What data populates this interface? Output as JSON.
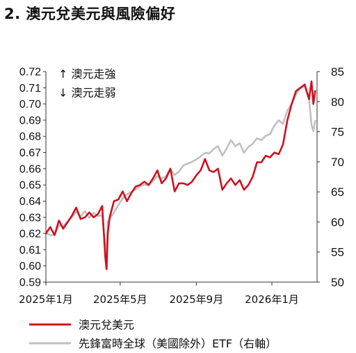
{
  "title": "2. 澳元兌美元與風險偏好",
  "annotations": {
    "up": "↑ 澳元走強",
    "down": "↓ 澳元走弱"
  },
  "colors": {
    "audusd": "#d0101e",
    "etf": "#c0c0c0",
    "axis": "#333333"
  },
  "chart_data": {
    "type": "line",
    "title": "2. 澳元兌美元與風險偏好",
    "x_tick_labels": [
      "2025年1月",
      "2025年5月",
      "2025年9月",
      "2026年1月"
    ],
    "x_tick_dates": [
      "2025-01-01",
      "2025-05-01",
      "2025-09-01",
      "2026-01-01"
    ],
    "x_range": [
      "2025-01-01",
      "2026-03-15"
    ],
    "y_left": {
      "min": 0.59,
      "max": 0.72,
      "step": 0.01,
      "ticks": [
        "0.59",
        "0.60",
        "0.61",
        "0.62",
        "0.63",
        "0.64",
        "0.65",
        "0.66",
        "0.67",
        "0.68",
        "0.69",
        "0.70",
        "0.71",
        "0.72"
      ]
    },
    "y_right": {
      "min": 50,
      "max": 85,
      "step": 5,
      "ticks": [
        "50",
        "55",
        "60",
        "65",
        "70",
        "75",
        "80",
        "85"
      ]
    },
    "legend_position": "bottom",
    "grid": false,
    "series": [
      {
        "name": "澳元兌美元",
        "axis": "left",
        "color": "#d0101e",
        "points": [
          [
            "2025-01-01",
            0.62
          ],
          [
            "2025-01-08",
            0.624
          ],
          [
            "2025-01-15",
            0.619
          ],
          [
            "2025-01-22",
            0.628
          ],
          [
            "2025-01-29",
            0.623
          ],
          [
            "2025-02-05",
            0.627
          ],
          [
            "2025-02-12",
            0.631
          ],
          [
            "2025-02-19",
            0.636
          ],
          [
            "2025-02-26",
            0.629
          ],
          [
            "2025-03-05",
            0.63
          ],
          [
            "2025-03-12",
            0.633
          ],
          [
            "2025-03-19",
            0.63
          ],
          [
            "2025-03-26",
            0.632
          ],
          [
            "2025-04-02",
            0.637
          ],
          [
            "2025-04-07",
            0.605
          ],
          [
            "2025-04-09",
            0.598
          ],
          [
            "2025-04-11",
            0.62
          ],
          [
            "2025-04-14",
            0.63
          ],
          [
            "2025-04-21",
            0.64
          ],
          [
            "2025-04-28",
            0.641
          ],
          [
            "2025-05-05",
            0.646
          ],
          [
            "2025-05-12",
            0.64
          ],
          [
            "2025-05-19",
            0.645
          ],
          [
            "2025-05-26",
            0.649
          ],
          [
            "2025-06-02",
            0.65
          ],
          [
            "2025-06-09",
            0.652
          ],
          [
            "2025-06-16",
            0.65
          ],
          [
            "2025-06-23",
            0.654
          ],
          [
            "2025-06-30",
            0.659
          ],
          [
            "2025-07-07",
            0.651
          ],
          [
            "2025-07-14",
            0.654
          ],
          [
            "2025-07-21",
            0.66
          ],
          [
            "2025-07-28",
            0.646
          ],
          [
            "2025-08-04",
            0.651
          ],
          [
            "2025-08-11",
            0.651
          ],
          [
            "2025-08-18",
            0.65
          ],
          [
            "2025-08-25",
            0.652
          ],
          [
            "2025-09-01",
            0.656
          ],
          [
            "2025-09-08",
            0.659
          ],
          [
            "2025-09-15",
            0.666
          ],
          [
            "2025-09-22",
            0.659
          ],
          [
            "2025-09-29",
            0.658
          ],
          [
            "2025-10-06",
            0.66
          ],
          [
            "2025-10-13",
            0.647
          ],
          [
            "2025-10-20",
            0.651
          ],
          [
            "2025-10-27",
            0.654
          ],
          [
            "2025-11-03",
            0.65
          ],
          [
            "2025-11-10",
            0.653
          ],
          [
            "2025-11-17",
            0.647
          ],
          [
            "2025-11-24",
            0.65
          ],
          [
            "2025-12-01",
            0.655
          ],
          [
            "2025-12-08",
            0.664
          ],
          [
            "2025-12-15",
            0.664
          ],
          [
            "2025-12-22",
            0.668
          ],
          [
            "2025-12-29",
            0.667
          ],
          [
            "2026-01-05",
            0.67
          ],
          [
            "2026-01-12",
            0.669
          ],
          [
            "2026-01-19",
            0.675
          ],
          [
            "2026-01-26",
            0.69
          ],
          [
            "2026-02-02",
            0.7
          ],
          [
            "2026-02-09",
            0.708
          ],
          [
            "2026-02-16",
            0.71
          ],
          [
            "2026-02-23",
            0.712
          ],
          [
            "2026-03-02",
            0.703
          ],
          [
            "2026-03-06",
            0.714
          ],
          [
            "2026-03-09",
            0.7
          ],
          [
            "2026-03-12",
            0.708
          ]
        ]
      },
      {
        "name": "先鋒富時全球（美國除外）ETF（右軸）",
        "axis": "right",
        "color": "#c0c0c0",
        "points": [
          [
            "2025-01-01",
            58.2
          ],
          [
            "2025-01-08",
            57.8
          ],
          [
            "2025-01-15",
            57.9
          ],
          [
            "2025-01-22",
            59.4
          ],
          [
            "2025-01-29",
            59.3
          ],
          [
            "2025-02-05",
            60.1
          ],
          [
            "2025-02-12",
            60.8
          ],
          [
            "2025-02-19",
            61.7
          ],
          [
            "2025-02-26",
            60.9
          ],
          [
            "2025-03-05",
            61.8
          ],
          [
            "2025-03-12",
            60.7
          ],
          [
            "2025-03-19",
            61.5
          ],
          [
            "2025-03-26",
            61.0
          ],
          [
            "2025-04-02",
            61.1
          ],
          [
            "2025-04-07",
            55.8
          ],
          [
            "2025-04-09",
            54.0
          ],
          [
            "2025-04-11",
            60.0
          ],
          [
            "2025-04-14",
            60.5
          ],
          [
            "2025-04-21",
            61.6
          ],
          [
            "2025-04-28",
            62.8
          ],
          [
            "2025-05-05",
            63.9
          ],
          [
            "2025-05-12",
            64.6
          ],
          [
            "2025-05-19",
            65.0
          ],
          [
            "2025-05-26",
            65.4
          ],
          [
            "2025-06-02",
            65.9
          ],
          [
            "2025-06-09",
            66.2
          ],
          [
            "2025-06-16",
            66.1
          ],
          [
            "2025-06-23",
            66.8
          ],
          [
            "2025-06-30",
            67.6
          ],
          [
            "2025-07-07",
            67.2
          ],
          [
            "2025-07-14",
            67.6
          ],
          [
            "2025-07-21",
            68.8
          ],
          [
            "2025-07-28",
            67.8
          ],
          [
            "2025-08-04",
            68.4
          ],
          [
            "2025-08-11",
            69.4
          ],
          [
            "2025-08-18",
            69.7
          ],
          [
            "2025-08-25",
            70.0
          ],
          [
            "2025-09-01",
            70.4
          ],
          [
            "2025-09-08",
            70.9
          ],
          [
            "2025-09-15",
            71.5
          ],
          [
            "2025-09-22",
            71.4
          ],
          [
            "2025-09-29",
            72.1
          ],
          [
            "2025-10-06",
            72.6
          ],
          [
            "2025-10-13",
            71.0
          ],
          [
            "2025-10-20",
            72.2
          ],
          [
            "2025-10-27",
            73.6
          ],
          [
            "2025-11-03",
            72.6
          ],
          [
            "2025-11-10",
            73.1
          ],
          [
            "2025-11-17",
            71.5
          ],
          [
            "2025-11-24",
            72.5
          ],
          [
            "2025-12-01",
            73.0
          ],
          [
            "2025-12-08",
            73.9
          ],
          [
            "2025-12-15",
            73.6
          ],
          [
            "2025-12-22",
            74.3
          ],
          [
            "2025-12-29",
            74.6
          ],
          [
            "2026-01-05",
            76.0
          ],
          [
            "2026-01-12",
            76.9
          ],
          [
            "2026-01-19",
            76.3
          ],
          [
            "2026-01-26",
            78.5
          ],
          [
            "2026-02-02",
            79.6
          ],
          [
            "2026-02-09",
            81.2
          ],
          [
            "2026-02-16",
            82.2
          ],
          [
            "2026-02-23",
            82.6
          ],
          [
            "2026-03-02",
            80.5
          ],
          [
            "2026-03-06",
            76.2
          ],
          [
            "2026-03-09",
            75.1
          ],
          [
            "2026-03-12",
            76.8
          ]
        ]
      }
    ]
  }
}
